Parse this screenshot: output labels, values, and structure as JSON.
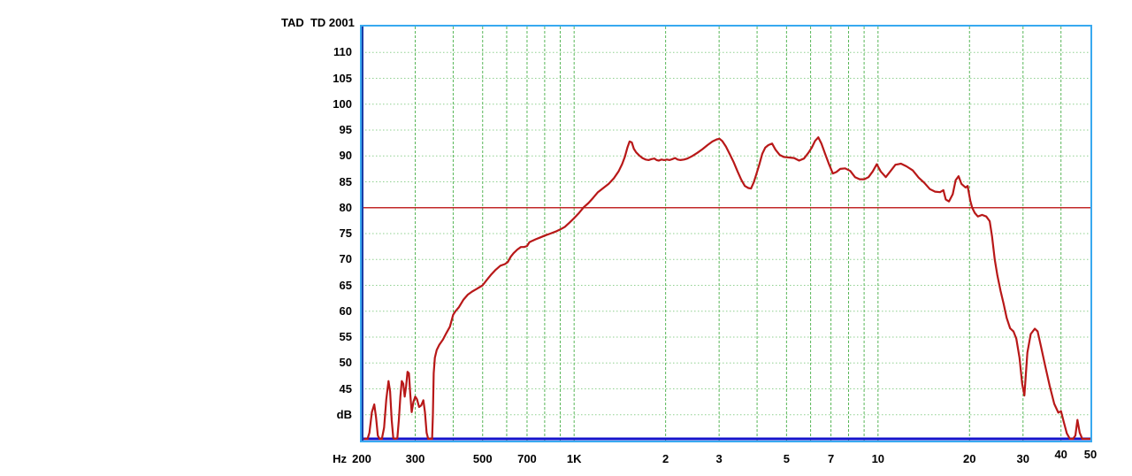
{
  "title": "TAD  TD 2001",
  "colors": {
    "background": "#ffffff",
    "plot_border": "#38a9f0",
    "plot_left_edge": "#1b3da8",
    "grid_horizontal": "#8fd08f",
    "grid_vertical": "#57b657",
    "curve": "#b81818",
    "reference_line": "#c22828",
    "floor_line": "#1414cc",
    "text": "#000000"
  },
  "chart_data": {
    "type": "line",
    "title": "TAD  TD 2001",
    "legend": [],
    "grid": true,
    "x_axis": {
      "label": "Hz",
      "scale": "log",
      "min": 200,
      "max": 50000,
      "ticks": [
        {
          "label": "200",
          "f": 200,
          "dy": 0
        },
        {
          "label": "300",
          "f": 300,
          "dy": 0
        },
        {
          "label": "500",
          "f": 500,
          "dy": 0
        },
        {
          "label": "700",
          "f": 700,
          "dy": 0
        },
        {
          "label": "1K",
          "f": 1000,
          "dy": 0
        },
        {
          "label": "2",
          "f": 2000,
          "dy": 0
        },
        {
          "label": "3",
          "f": 3000,
          "dy": 0
        },
        {
          "label": "5",
          "f": 5000,
          "dy": 0
        },
        {
          "label": "7",
          "f": 7000,
          "dy": 0
        },
        {
          "label": "10",
          "f": 10000,
          "dy": 0
        },
        {
          "label": "20",
          "f": 20000,
          "dy": 0
        },
        {
          "label": "30",
          "f": 30000,
          "dy": 0
        },
        {
          "label": "40",
          "f": 40000,
          "dy": -5
        },
        {
          "label": "50",
          "f": 50000,
          "dy": -5
        }
      ],
      "gridline_frequencies": [
        300,
        400,
        500,
        600,
        700,
        800,
        900,
        1000,
        2000,
        3000,
        4000,
        5000,
        6000,
        7000,
        8000,
        9000,
        10000,
        20000,
        30000,
        40000
      ]
    },
    "y_axis": {
      "unit": "dB",
      "min": 35,
      "max": 115,
      "tick_step": 5,
      "ticks": [
        {
          "label": "110",
          "value": 110
        },
        {
          "label": "105",
          "value": 105
        },
        {
          "label": "100",
          "value": 100
        },
        {
          "label": "95",
          "value": 95
        },
        {
          "label": "90",
          "value": 90
        },
        {
          "label": "85",
          "value": 85
        },
        {
          "label": "80",
          "value": 80
        },
        {
          "label": "75",
          "value": 75
        },
        {
          "label": "70",
          "value": 70
        },
        {
          "label": "65",
          "value": 65
        },
        {
          "label": "60",
          "value": 60
        },
        {
          "label": "55",
          "value": 55
        },
        {
          "label": "50",
          "value": 50
        },
        {
          "label": "45",
          "value": 45
        },
        {
          "label": "dB",
          "value": 40
        }
      ],
      "gridline_values": [
        40,
        45,
        50,
        55,
        60,
        65,
        70,
        75,
        80,
        85,
        90,
        95,
        100,
        105,
        110
      ]
    },
    "reference_line_db": 80,
    "floor_line_db": 35,
    "series": [
      {
        "name": "frequency-response",
        "points": [
          [
            205,
            35
          ],
          [
            209,
            35
          ],
          [
            212,
            36.5
          ],
          [
            216,
            40.5
          ],
          [
            220,
            42
          ],
          [
            223,
            39.5
          ],
          [
            226,
            36
          ],
          [
            229,
            35
          ],
          [
            233,
            35
          ],
          [
            237,
            37.5
          ],
          [
            241,
            43
          ],
          [
            245,
            46.5
          ],
          [
            248,
            44.5
          ],
          [
            251,
            39
          ],
          [
            254,
            35.5
          ],
          [
            258,
            35
          ],
          [
            262,
            35.5
          ],
          [
            265,
            39
          ],
          [
            268,
            43.5
          ],
          [
            271,
            46.5
          ],
          [
            274,
            46
          ],
          [
            277,
            43.5
          ],
          [
            280,
            45.5
          ],
          [
            283,
            48.3
          ],
          [
            286,
            48
          ],
          [
            289,
            44
          ],
          [
            292,
            40.5
          ],
          [
            296,
            42.5
          ],
          [
            300,
            43.5
          ],
          [
            304,
            43
          ],
          [
            309,
            41.5
          ],
          [
            314,
            41.8
          ],
          [
            319,
            42.8
          ],
          [
            323,
            40.5
          ],
          [
            327,
            36.5
          ],
          [
            331,
            35
          ],
          [
            336,
            35
          ],
          [
            341,
            35
          ],
          [
            343,
            40
          ],
          [
            345,
            48
          ],
          [
            348,
            51
          ],
          [
            353,
            52.5
          ],
          [
            360,
            53.5
          ],
          [
            370,
            54.5
          ],
          [
            380,
            55.8
          ],
          [
            390,
            57
          ],
          [
            400,
            59.3
          ],
          [
            407,
            60
          ],
          [
            418,
            60.8
          ],
          [
            432,
            62.2
          ],
          [
            447,
            63.2
          ],
          [
            462,
            63.8
          ],
          [
            478,
            64.3
          ],
          [
            500,
            65
          ],
          [
            515,
            66
          ],
          [
            532,
            67
          ],
          [
            552,
            68
          ],
          [
            572,
            68.8
          ],
          [
            592,
            69.1
          ],
          [
            605,
            69.5
          ],
          [
            618,
            70.5
          ],
          [
            632,
            71.2
          ],
          [
            650,
            71.9
          ],
          [
            668,
            72.4
          ],
          [
            685,
            72.4
          ],
          [
            700,
            72.6
          ],
          [
            712,
            73.3
          ],
          [
            728,
            73.6
          ],
          [
            748,
            73.9
          ],
          [
            770,
            74.2
          ],
          [
            800,
            74.6
          ],
          [
            835,
            75
          ],
          [
            870,
            75.4
          ],
          [
            900,
            75.8
          ],
          [
            932,
            76.3
          ],
          [
            965,
            77.1
          ],
          [
            1000,
            78
          ],
          [
            1038,
            79
          ],
          [
            1076,
            80.1
          ],
          [
            1115,
            80.9
          ],
          [
            1155,
            81.9
          ],
          [
            1198,
            83
          ],
          [
            1248,
            83.8
          ],
          [
            1300,
            84.6
          ],
          [
            1352,
            85.7
          ],
          [
            1400,
            87
          ],
          [
            1438,
            88.4
          ],
          [
            1468,
            89.8
          ],
          [
            1497,
            91.6
          ],
          [
            1522,
            92.8
          ],
          [
            1548,
            92.6
          ],
          [
            1572,
            91.4
          ],
          [
            1600,
            90.7
          ],
          [
            1638,
            90.1
          ],
          [
            1678,
            89.6
          ],
          [
            1718,
            89.3
          ],
          [
            1758,
            89.2
          ],
          [
            1798,
            89.4
          ],
          [
            1838,
            89.5
          ],
          [
            1868,
            89.2
          ],
          [
            1900,
            89.1
          ],
          [
            1938,
            89.3
          ],
          [
            1978,
            89.2
          ],
          [
            2020,
            89.3
          ],
          [
            2062,
            89.2
          ],
          [
            2105,
            89.4
          ],
          [
            2148,
            89.6
          ],
          [
            2190,
            89.3
          ],
          [
            2240,
            89.2
          ],
          [
            2300,
            89.3
          ],
          [
            2360,
            89.5
          ],
          [
            2450,
            90
          ],
          [
            2545,
            90.6
          ],
          [
            2645,
            91.3
          ],
          [
            2748,
            92.1
          ],
          [
            2852,
            92.8
          ],
          [
            2950,
            93.2
          ],
          [
            3010,
            93.3
          ],
          [
            3070,
            92.9
          ],
          [
            3160,
            91.8
          ],
          [
            3255,
            90.3
          ],
          [
            3350,
            88.8
          ],
          [
            3450,
            87
          ],
          [
            3548,
            85.4
          ],
          [
            3645,
            84.2
          ],
          [
            3745,
            83.8
          ],
          [
            3820,
            83.7
          ],
          [
            3900,
            84.9
          ],
          [
            3985,
            86.6
          ],
          [
            4070,
            88.4
          ],
          [
            4160,
            90.4
          ],
          [
            4255,
            91.6
          ],
          [
            4355,
            92.1
          ],
          [
            4480,
            92.4
          ],
          [
            4600,
            91.2
          ],
          [
            4745,
            90.2
          ],
          [
            4895,
            89.8
          ],
          [
            5090,
            89.7
          ],
          [
            5295,
            89.6
          ],
          [
            5500,
            89.1
          ],
          [
            5705,
            89.5
          ],
          [
            5900,
            90.6
          ],
          [
            6055,
            91.6
          ],
          [
            6205,
            92.9
          ],
          [
            6360,
            93.6
          ],
          [
            6510,
            92.4
          ],
          [
            6700,
            90.4
          ],
          [
            6900,
            88.4
          ],
          [
            7100,
            86.6
          ],
          [
            7300,
            86.9
          ],
          [
            7510,
            87.5
          ],
          [
            7800,
            87.6
          ],
          [
            8100,
            87.1
          ],
          [
            8400,
            85.9
          ],
          [
            8705,
            85.5
          ],
          [
            9010,
            85.5
          ],
          [
            9310,
            85.9
          ],
          [
            9605,
            87
          ],
          [
            9905,
            88.4
          ],
          [
            10210,
            87
          ],
          [
            10605,
            85.9
          ],
          [
            11005,
            87.1
          ],
          [
            11410,
            88.3
          ],
          [
            11900,
            88.5
          ],
          [
            12410,
            88
          ],
          [
            13010,
            87.2
          ],
          [
            13605,
            85.8
          ],
          [
            14210,
            84.8
          ],
          [
            14810,
            83.6
          ],
          [
            15410,
            83.1
          ],
          [
            16010,
            83
          ],
          [
            16410,
            83.4
          ],
          [
            16710,
            81.6
          ],
          [
            17110,
            81.2
          ],
          [
            17610,
            82.6
          ],
          [
            18010,
            85.3
          ],
          [
            18410,
            86.1
          ],
          [
            18810,
            84.6
          ],
          [
            19410,
            83.9
          ],
          [
            19710,
            84.2
          ],
          [
            20110,
            81.4
          ],
          [
            20410,
            80
          ],
          [
            20810,
            79
          ],
          [
            21310,
            78.3
          ],
          [
            22010,
            78.6
          ],
          [
            22710,
            78.3
          ],
          [
            23310,
            77.4
          ],
          [
            23710,
            74.5
          ],
          [
            24210,
            70
          ],
          [
            24710,
            66.9
          ],
          [
            25310,
            63.9
          ],
          [
            25910,
            61.4
          ],
          [
            26510,
            58.7
          ],
          [
            27210,
            56.7
          ],
          [
            27910,
            56.1
          ],
          [
            28510,
            54.7
          ],
          [
            29210,
            51
          ],
          [
            29810,
            46
          ],
          [
            30310,
            43.7
          ],
          [
            31010,
            52
          ],
          [
            31810,
            55.6
          ],
          [
            32810,
            56.6
          ],
          [
            33510,
            56.1
          ],
          [
            34410,
            53.1
          ],
          [
            35510,
            49.4
          ],
          [
            36710,
            45.6
          ],
          [
            38010,
            42.1
          ],
          [
            39210,
            40.4
          ],
          [
            40010,
            40.7
          ],
          [
            40810,
            38.7
          ],
          [
            41810,
            36.4
          ],
          [
            42810,
            35.2
          ],
          [
            43810,
            35
          ],
          [
            44610,
            36
          ],
          [
            45310,
            39
          ],
          [
            46110,
            36.5
          ],
          [
            47010,
            35
          ],
          [
            48510,
            35
          ],
          [
            49800,
            35
          ]
        ]
      }
    ]
  }
}
